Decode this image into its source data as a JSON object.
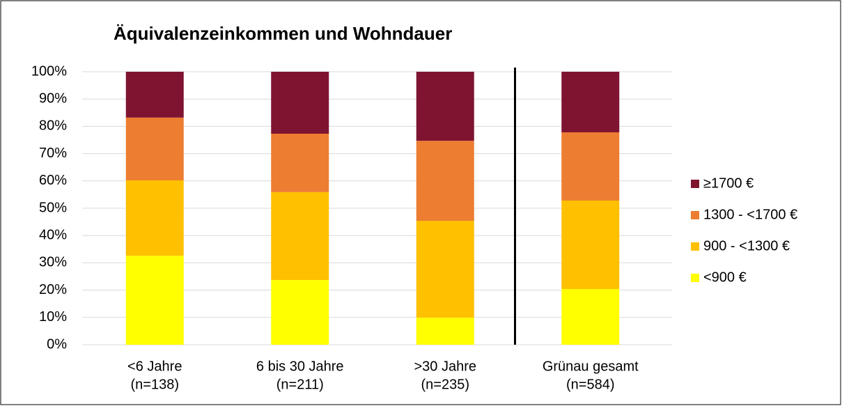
{
  "chart_data": {
    "type": "stacked_bar_percent",
    "title": "Äquivalenzeinkommen und Wohndauer",
    "categories": [
      [
        "<6 Jahre",
        "(n=138)"
      ],
      [
        "6 bis 30 Jahre",
        "(n=211)"
      ],
      [
        ">30 Jahre",
        "(n=235)"
      ],
      [
        "Grünau gesamt",
        "(n=584)"
      ]
    ],
    "series": [
      {
        "name": "<900 €",
        "color": "#ffff00",
        "values": [
          32.6,
          23.7,
          9.9,
          20.4
        ]
      },
      {
        "name": "900 - <1300 €",
        "color": "#ffc000",
        "values": [
          27.6,
          32.2,
          35.5,
          32.4
        ]
      },
      {
        "name": "1300 - <1700 €",
        "color": "#ed7d31",
        "values": [
          23.0,
          21.4,
          29.3,
          25.0
        ]
      },
      {
        "name": "≥1700 €",
        "color": "#7f1431",
        "values": [
          16.8,
          22.7,
          25.3,
          22.2
        ]
      }
    ],
    "ylim": [
      0,
      100
    ],
    "yticks": [
      {
        "value": 0,
        "label": "0%"
      },
      {
        "value": 10,
        "label": "10%"
      },
      {
        "value": 20,
        "label": "20%"
      },
      {
        "value": 30,
        "label": "30%"
      },
      {
        "value": 40,
        "label": "40%"
      },
      {
        "value": 50,
        "label": "50%"
      },
      {
        "value": 60,
        "label": "60%"
      },
      {
        "value": 70,
        "label": "70%"
      },
      {
        "value": 80,
        "label": "80%"
      },
      {
        "value": 90,
        "label": "90%"
      },
      {
        "value": 100,
        "label": "100%"
      }
    ],
    "grid": true,
    "legend": "right"
  }
}
